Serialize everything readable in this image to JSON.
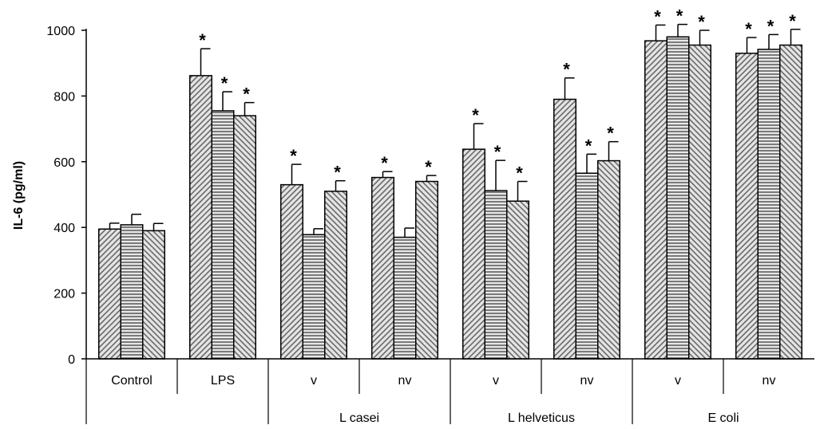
{
  "chart_data": {
    "type": "bar",
    "ylabel": "IL-6 (pg/ml)",
    "ylim": [
      0,
      1000
    ],
    "yticks": [
      0,
      200,
      400,
      600,
      800,
      1000
    ],
    "groups": [
      {
        "label": "Control",
        "parent": "",
        "values": [
          395,
          408,
          390
        ],
        "errors": [
          18,
          32,
          22
        ],
        "stars": [
          false,
          false,
          false
        ]
      },
      {
        "label": "LPS",
        "parent": "",
        "values": [
          862,
          755,
          740
        ],
        "errors": [
          82,
          58,
          40
        ],
        "stars": [
          true,
          true,
          true
        ]
      },
      {
        "label": "v",
        "parent": "L casei",
        "values": [
          530,
          378,
          510
        ],
        "errors": [
          62,
          18,
          32
        ],
        "stars": [
          true,
          false,
          true
        ]
      },
      {
        "label": "nv",
        "parent": "L casei",
        "values": [
          552,
          370,
          540
        ],
        "errors": [
          18,
          28,
          18
        ],
        "stars": [
          true,
          false,
          true
        ]
      },
      {
        "label": "v",
        "parent": "L helveticus",
        "values": [
          638,
          512,
          480
        ],
        "errors": [
          78,
          92,
          60
        ],
        "stars": [
          true,
          true,
          true
        ]
      },
      {
        "label": "nv",
        "parent": "L helveticus",
        "values": [
          790,
          565,
          603
        ],
        "errors": [
          65,
          58,
          58
        ],
        "stars": [
          true,
          true,
          true
        ]
      },
      {
        "label": "v",
        "parent": "E coli",
        "values": [
          968,
          980,
          955
        ],
        "errors": [
          48,
          38,
          45
        ],
        "stars": [
          true,
          true,
          true
        ]
      },
      {
        "label": "nv",
        "parent": "E coli",
        "values": [
          930,
          942,
          955
        ],
        "errors": [
          48,
          45,
          48
        ],
        "stars": [
          true,
          true,
          true
        ]
      }
    ],
    "parent_groups": [
      "L casei",
      "L helveticus",
      "E coli"
    ],
    "series_patterns": [
      "diagonal-up",
      "horizontal",
      "diagonal-down"
    ],
    "star_label": "*",
    "grid": false,
    "legend": "none"
  }
}
